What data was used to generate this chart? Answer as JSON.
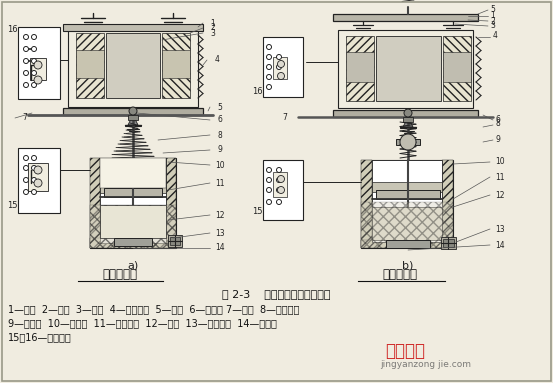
{
  "background_color": "#f0ece0",
  "fig_width": 5.53,
  "fig_height": 3.83,
  "dpi": 100,
  "title_label1": "通电延时型",
  "title_label2": "断电延时型",
  "fig_caption": "图 2-3    空气阻尼式时间继电器",
  "legend_line1": "1—线圈  2—铁心  3—衔铁  4—反力弹簧  5—推板  6—活塞杆 7—杠杆  8—塔形弹簧",
  "legend_line2": "9—弱弹簧  10—橡皮膜  11—空气宝壁  12—活塞  13—调节螺杆  14—进气门",
  "legend_line3": "15、16—微动开关",
  "watermark1": "经验总结",
  "watermark2": "jingyanzong jie.com",
  "text_color": "#111111",
  "watermark_color": "#cc1111",
  "label_a": "a)",
  "label_b": "b)"
}
